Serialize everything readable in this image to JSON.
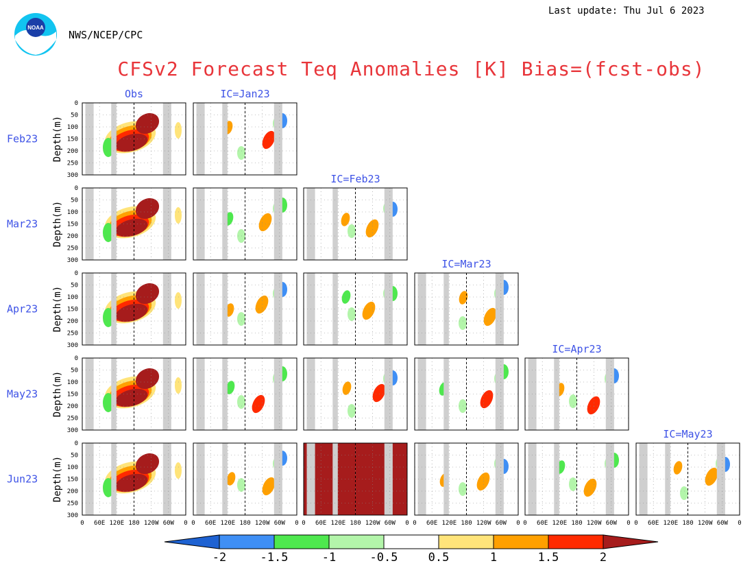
{
  "header": {
    "last_update": "Last update: Thu Jul 6 2023",
    "agency": "NWS/NCEP/CPC",
    "title": "CFSv2 Forecast Teq Anomalies [K] Bias=(fcst-obs)",
    "logo_text": "NOAA"
  },
  "colors": {
    "title": "#e8353a",
    "label_blue": "#3d52e6",
    "land_gray": "#cfcfcf",
    "levels": [
      "#1e62d2",
      "#3f8ff5",
      "#4ee84e",
      "#b3f5aa",
      "#ffffff",
      "#ffe47a",
      "#ffa000",
      "#ff2a00",
      "#a61c1c"
    ]
  },
  "chart_data": {
    "type": "heatmap",
    "variable": "Teq Anomalies [K]",
    "rows": [
      "Feb23",
      "Mar23",
      "Apr23",
      "May23",
      "Jun23"
    ],
    "columns": [
      "Obs",
      "IC=Jan23",
      "IC=Feb23",
      "IC=Mar23",
      "IC=Apr23",
      "IC=May23"
    ],
    "ylabel": "Depth(m)",
    "ylim": [
      300,
      0
    ],
    "y_ticks": [
      "0",
      "50",
      "100",
      "150",
      "200",
      "250",
      "300"
    ],
    "x_ticks": [
      "0",
      "60E",
      "120E",
      "180",
      "120W",
      "60W",
      "0"
    ],
    "grid": true,
    "colorbar": {
      "levels": [
        "-2",
        "-1.5",
        "-1",
        "-0.5",
        "0.5",
        "1",
        "1.5",
        "2"
      ],
      "colors": [
        "#1e62d2",
        "#3f8ff5",
        "#4ee84e",
        "#b3f5aa",
        "#ffffff",
        "#ffe47a",
        "#ffa000",
        "#ff2a00",
        "#a61c1c"
      ],
      "extend": "both"
    }
  }
}
